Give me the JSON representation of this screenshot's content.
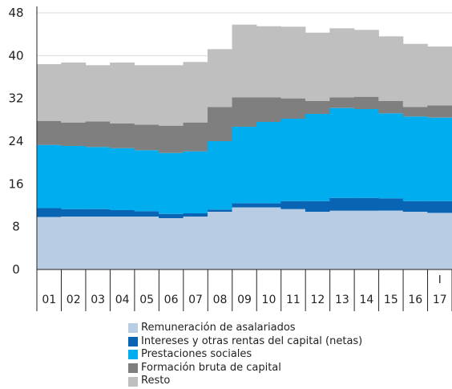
{
  "chart_data": {
    "type": "bar",
    "stacked": true,
    "categories": [
      "01",
      "02",
      "03",
      "04",
      "05",
      "06",
      "07",
      "08",
      "09",
      "10",
      "11",
      "12",
      "13",
      "14",
      "15",
      "16",
      "17"
    ],
    "category_annotations": [
      {
        "category": "17",
        "text": "I"
      }
    ],
    "ylim": [
      0,
      48
    ],
    "yticks": [
      0,
      8,
      16,
      24,
      32,
      40,
      48
    ],
    "legend_position": "bottom",
    "series": [
      {
        "name": "Remuneración de asalariados",
        "color": "#b8cce4",
        "values": [
          9.8,
          9.9,
          9.9,
          9.9,
          9.9,
          9.6,
          9.9,
          10.8,
          11.6,
          11.6,
          11.3,
          10.8,
          11.0,
          11.0,
          11.0,
          10.8,
          10.6
        ]
      },
      {
        "name": "Intereses y otras rentas del capital (netas)",
        "color": "#0a64b4",
        "values": [
          1.7,
          1.4,
          1.4,
          1.2,
          1.0,
          0.8,
          0.6,
          0.4,
          0.8,
          0.8,
          1.5,
          2.0,
          2.4,
          2.4,
          2.3,
          2.0,
          2.2
        ]
      },
      {
        "name": "Prestaciones sociales",
        "color": "#00aeef",
        "values": [
          11.8,
          11.8,
          11.6,
          11.6,
          11.4,
          11.4,
          11.6,
          12.8,
          14.3,
          15.2,
          15.4,
          16.3,
          16.8,
          16.6,
          15.9,
          15.8,
          15.6
        ]
      },
      {
        "name": "Formación bruta de capital",
        "color": "#7f7f7f",
        "values": [
          4.5,
          4.4,
          4.8,
          4.6,
          4.8,
          5.1,
          5.4,
          6.4,
          5.5,
          4.6,
          3.8,
          2.4,
          2.0,
          2.3,
          2.3,
          1.8,
          2.3
        ]
      },
      {
        "name": "Resto",
        "color": "#bfbfbf",
        "values": [
          10.6,
          11.2,
          10.5,
          11.4,
          11.1,
          11.3,
          11.3,
          10.8,
          13.6,
          13.3,
          13.4,
          12.8,
          12.9,
          12.5,
          12.1,
          11.8,
          11.0
        ]
      }
    ]
  }
}
